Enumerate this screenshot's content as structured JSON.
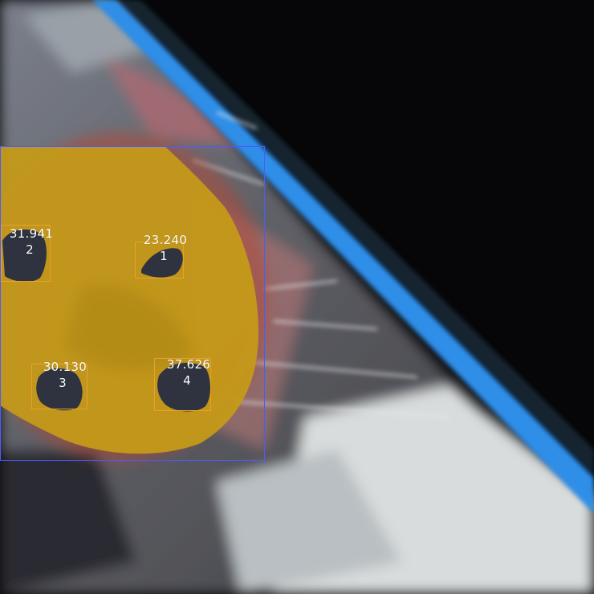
{
  "detections": [
    {
      "id": "1",
      "score": "23.240"
    },
    {
      "id": "2",
      "score": "31.941"
    },
    {
      "id": "3",
      "score": "30.130"
    },
    {
      "id": "4",
      "score": "37.626"
    }
  ],
  "colors": {
    "background": "#060608",
    "segmentation_mask": "#c59a18",
    "spot_fill": "#2f3340",
    "roi_box": "#4a5cff",
    "spot_box": "#e8a22a",
    "text": "#ffffff"
  }
}
